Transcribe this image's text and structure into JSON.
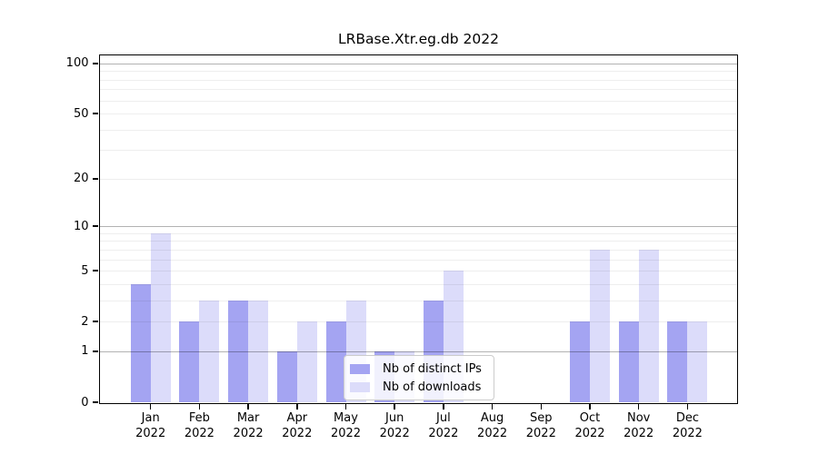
{
  "chart_data": {
    "type": "bar",
    "title": "LRBase.Xtr.eg.db 2022",
    "x_months": [
      "Jan",
      "Feb",
      "Mar",
      "Apr",
      "May",
      "Jun",
      "Jul",
      "Aug",
      "Sep",
      "Oct",
      "Nov",
      "Dec"
    ],
    "x_year": "2022",
    "series": [
      {
        "id": "distinct-ips",
        "name": "Nb of distinct IPs",
        "color": "#a4a4f2",
        "values": [
          4,
          2,
          3,
          1,
          2,
          1,
          3,
          0,
          0,
          2,
          2,
          2
        ]
      },
      {
        "id": "downloads",
        "name": "Nb of downloads",
        "color": "#dcdcfa",
        "values": [
          9,
          3,
          3,
          2,
          3,
          1,
          5,
          0,
          0,
          7,
          7,
          2
        ]
      }
    ],
    "yscale": "log1p",
    "ylim": [
      0,
      112
    ],
    "yticks": [
      0,
      1,
      2,
      5,
      10,
      20,
      50,
      100
    ],
    "grid": {
      "orientation": "horizontal",
      "major_values": [
        1,
        10,
        100
      ],
      "minor_values": [
        2,
        3,
        4,
        5,
        6,
        7,
        8,
        9,
        20,
        30,
        40,
        50,
        60,
        70,
        80,
        90
      ],
      "major_color": "rgba(0,0,0,0.30)",
      "minor_color": "rgba(0,0,0,0.065)"
    },
    "legend_position": "lower-center-inside",
    "axis_color": "#000000",
    "background_color": "#ffffff"
  }
}
